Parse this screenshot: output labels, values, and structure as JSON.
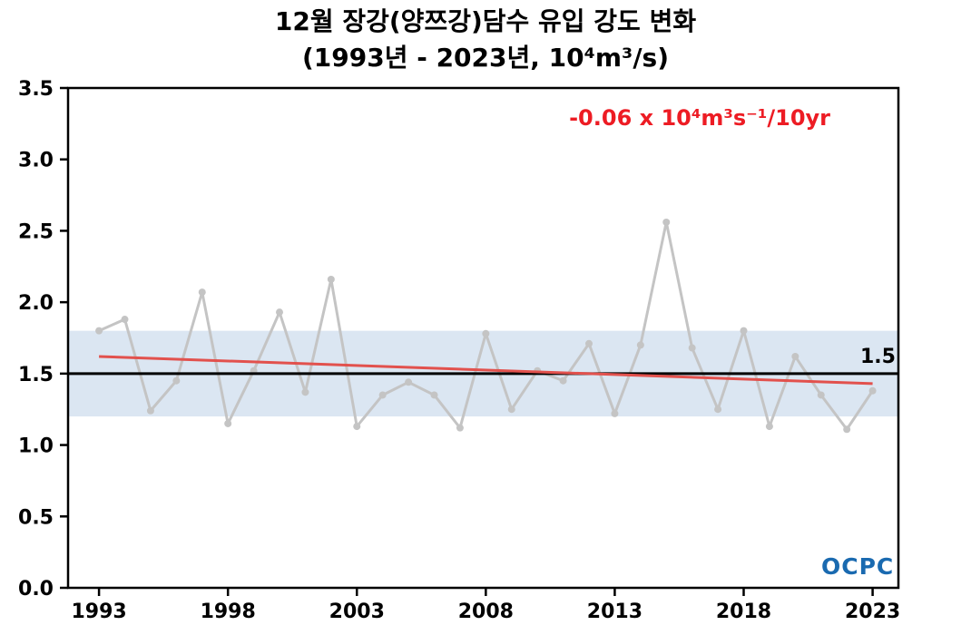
{
  "title": {
    "line1": "12월 장강(양쯔강)담수 유입 강도 변화",
    "line2": "(1993년 - 2023년, 10⁴m³/s)"
  },
  "logo": {
    "text": "OCPC",
    "color": "#1a6ab0"
  },
  "chart_data": {
    "type": "line",
    "title": "12월 장강(양쯔강)담수 유입 강도 변화",
    "subtitle": "(1993년 - 2023년, 10⁴m³/s)",
    "xlabel": "",
    "ylabel": "",
    "xlim": [
      1991.8,
      2024.0
    ],
    "ylim": [
      0.0,
      3.5
    ],
    "x_ticks": [
      1993,
      1998,
      2003,
      2008,
      2013,
      2018,
      2023
    ],
    "y_ticks": [
      "0.0",
      "0.5",
      "1.0",
      "1.5",
      "2.0",
      "2.5",
      "3.0",
      "3.5"
    ],
    "grid": false,
    "legend": false,
    "x": [
      1993,
      1994,
      1995,
      1996,
      1997,
      1998,
      1999,
      2000,
      2001,
      2002,
      2003,
      2004,
      2005,
      2006,
      2007,
      2008,
      2009,
      2010,
      2011,
      2012,
      2013,
      2014,
      2015,
      2016,
      2017,
      2018,
      2019,
      2020,
      2021,
      2022,
      2023
    ],
    "values": [
      1.8,
      1.88,
      1.24,
      1.45,
      2.07,
      1.15,
      1.52,
      1.93,
      1.37,
      2.16,
      1.13,
      1.35,
      1.44,
      1.35,
      1.12,
      1.78,
      1.25,
      1.52,
      1.45,
      1.71,
      1.22,
      1.7,
      2.56,
      1.68,
      1.25,
      1.8,
      1.13,
      1.62,
      1.35,
      1.11,
      1.38
    ],
    "line_color": "#c4c4c4",
    "marker_radius": 4,
    "band": {
      "from": 1.2,
      "to": 1.8,
      "color": "#dbe6f2"
    },
    "mean_line": {
      "value": 1.5,
      "label": "1.5",
      "color": "#000000"
    },
    "trend_line": {
      "start_year": 1993,
      "start_value": 1.62,
      "end_year": 2023,
      "end_value": 1.43,
      "color": "#e2514d",
      "label": "-0.06 x 10⁴m³s⁻¹/10yr",
      "label_color": "#ed1c24"
    }
  }
}
